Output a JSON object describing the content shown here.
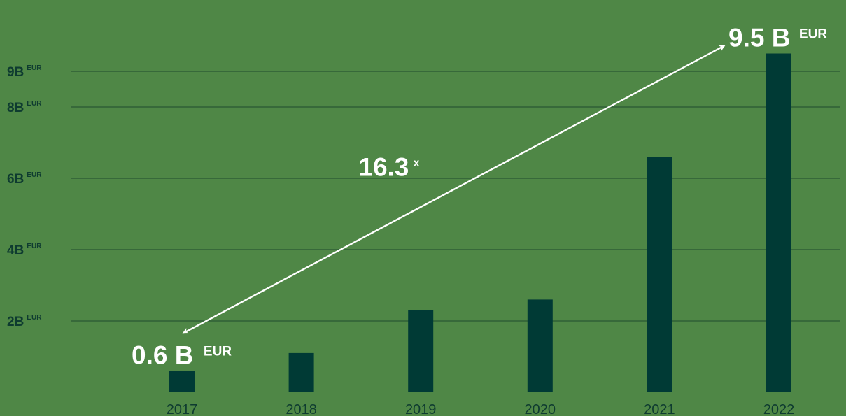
{
  "chart_data": {
    "type": "bar",
    "categories": [
      "2017",
      "2018",
      "2019",
      "2020",
      "2021",
      "2022"
    ],
    "values": [
      0.6,
      1.1,
      2.3,
      2.6,
      6.6,
      9.5
    ],
    "yticks": [
      {
        "value": 2,
        "label": "2B",
        "unit": "EUR"
      },
      {
        "value": 4,
        "label": "4B",
        "unit": "EUR"
      },
      {
        "value": 6,
        "label": "6B",
        "unit": "EUR"
      },
      {
        "value": 8,
        "label": "8B",
        "unit": "EUR"
      },
      {
        "value": 9,
        "label": "9B",
        "unit": "EUR"
      }
    ],
    "ylim": [
      0,
      9.9
    ],
    "grid": true,
    "colors": {
      "background": "#4f8746",
      "bar": "#003a35",
      "gridline": "#1f4b2e",
      "tick_text": "#0e3b30",
      "annotation": "#ffffff"
    },
    "annotations": {
      "start": {
        "category": "2017",
        "value_text": "0.6 B",
        "unit": "EUR"
      },
      "end": {
        "category": "2022",
        "value_text": "9.5 B",
        "unit": "EUR"
      },
      "multiplier": {
        "main": "16.3",
        "sup": "x"
      }
    },
    "title": "",
    "xlabel": "",
    "ylabel": ""
  }
}
